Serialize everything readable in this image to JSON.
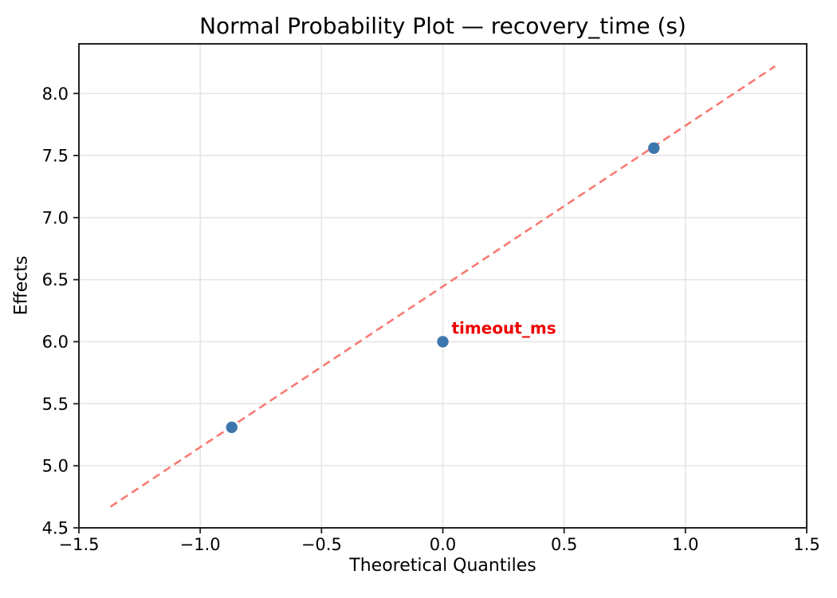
{
  "chart_data": {
    "type": "scatter",
    "title": "Normal Probability Plot — recovery_time (s)",
    "xlabel": "Theoretical Quantiles",
    "ylabel": "Effects",
    "xlim": [
      -1.5,
      1.5
    ],
    "ylim": [
      4.5,
      8.4
    ],
    "grid": true,
    "legend": false,
    "xticks": [
      -1.5,
      -1.0,
      -0.5,
      0.0,
      0.5,
      1.0,
      1.5
    ],
    "xtick_labels": [
      "−1.5",
      "−1.0",
      "−0.5",
      "0.0",
      "0.5",
      "1.0",
      "1.5"
    ],
    "yticks": [
      4.5,
      5.0,
      5.5,
      6.0,
      6.5,
      7.0,
      7.5,
      8.0
    ],
    "ytick_labels": [
      "4.5",
      "5.0",
      "5.5",
      "6.0",
      "6.5",
      "7.0",
      "7.5",
      "8.0"
    ],
    "points": [
      {
        "x": -0.87,
        "y": 5.31
      },
      {
        "x": 0.0,
        "y": 6.0,
        "annotation": "timeout_ms"
      },
      {
        "x": 0.87,
        "y": 7.56
      }
    ],
    "fit_line": {
      "style": "dashed",
      "x1": -1.37,
      "y1": 4.67,
      "x2": 1.37,
      "y2": 8.22
    },
    "colors": {
      "background": "#ffffff",
      "marker": "#3d76ad",
      "fit_line": "#f87b72",
      "annotation": "#ee0000",
      "grid": "#e6e6e6",
      "spine": "#222222",
      "text": "#000000"
    }
  }
}
